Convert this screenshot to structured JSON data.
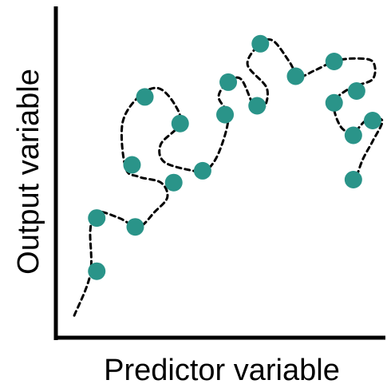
{
  "chart_data": {
    "type": "scatter",
    "xlabel": "Predictor variable",
    "ylabel": "Output variable",
    "grid": false,
    "ticks": false,
    "colors": {
      "point": "#2a9489",
      "axis": "#000000",
      "curve": "#000000"
    },
    "points": [
      {
        "x": 0.12,
        "y": 0.19
      },
      {
        "x": 0.12,
        "y": 0.37
      },
      {
        "x": 0.24,
        "y": 0.34
      },
      {
        "x": 0.23,
        "y": 0.55
      },
      {
        "x": 0.27,
        "y": 0.78
      },
      {
        "x": 0.36,
        "y": 0.49
      },
      {
        "x": 0.38,
        "y": 0.69
      },
      {
        "x": 0.45,
        "y": 0.53
      },
      {
        "x": 0.52,
        "y": 0.72
      },
      {
        "x": 0.53,
        "y": 0.83
      },
      {
        "x": 0.62,
        "y": 0.75
      },
      {
        "x": 0.63,
        "y": 0.96
      },
      {
        "x": 0.74,
        "y": 0.85
      },
      {
        "x": 0.86,
        "y": 0.9
      },
      {
        "x": 0.86,
        "y": 0.76
      },
      {
        "x": 0.93,
        "y": 0.8
      },
      {
        "x": 0.92,
        "y": 0.65
      },
      {
        "x": 0.98,
        "y": 0.7
      },
      {
        "x": 0.92,
        "y": 0.5
      }
    ],
    "overfit_curve": [
      {
        "x": 0.05,
        "y": 0.04
      },
      {
        "x": 0.1,
        "y": 0.18
      },
      {
        "x": 0.1,
        "y": 0.33
      },
      {
        "x": 0.12,
        "y": 0.39
      },
      {
        "x": 0.19,
        "y": 0.37
      },
      {
        "x": 0.25,
        "y": 0.34
      },
      {
        "x": 0.3,
        "y": 0.39
      },
      {
        "x": 0.34,
        "y": 0.44
      },
      {
        "x": 0.32,
        "y": 0.49
      },
      {
        "x": 0.25,
        "y": 0.51
      },
      {
        "x": 0.21,
        "y": 0.54
      },
      {
        "x": 0.2,
        "y": 0.69
      },
      {
        "x": 0.25,
        "y": 0.78
      },
      {
        "x": 0.31,
        "y": 0.81
      },
      {
        "x": 0.36,
        "y": 0.76
      },
      {
        "x": 0.38,
        "y": 0.69
      },
      {
        "x": 0.32,
        "y": 0.62
      },
      {
        "x": 0.33,
        "y": 0.56
      },
      {
        "x": 0.42,
        "y": 0.53
      },
      {
        "x": 0.46,
        "y": 0.53
      },
      {
        "x": 0.5,
        "y": 0.59
      },
      {
        "x": 0.53,
        "y": 0.71
      },
      {
        "x": 0.5,
        "y": 0.78
      },
      {
        "x": 0.53,
        "y": 0.83
      },
      {
        "x": 0.57,
        "y": 0.84
      },
      {
        "x": 0.61,
        "y": 0.75
      },
      {
        "x": 0.64,
        "y": 0.74
      },
      {
        "x": 0.65,
        "y": 0.81
      },
      {
        "x": 0.59,
        "y": 0.89
      },
      {
        "x": 0.63,
        "y": 0.96
      },
      {
        "x": 0.67,
        "y": 0.97
      },
      {
        "x": 0.72,
        "y": 0.9
      },
      {
        "x": 0.75,
        "y": 0.85
      },
      {
        "x": 0.8,
        "y": 0.87
      },
      {
        "x": 0.86,
        "y": 0.9
      },
      {
        "x": 0.92,
        "y": 0.91
      },
      {
        "x": 0.98,
        "y": 0.9
      },
      {
        "x": 0.98,
        "y": 0.84
      },
      {
        "x": 0.91,
        "y": 0.81
      },
      {
        "x": 0.86,
        "y": 0.76
      },
      {
        "x": 0.88,
        "y": 0.68
      },
      {
        "x": 0.92,
        "y": 0.66
      },
      {
        "x": 0.96,
        "y": 0.7
      },
      {
        "x": 1.01,
        "y": 0.7
      },
      {
        "x": 0.98,
        "y": 0.63
      },
      {
        "x": 0.95,
        "y": 0.57
      },
      {
        "x": 0.93,
        "y": 0.51
      }
    ]
  }
}
